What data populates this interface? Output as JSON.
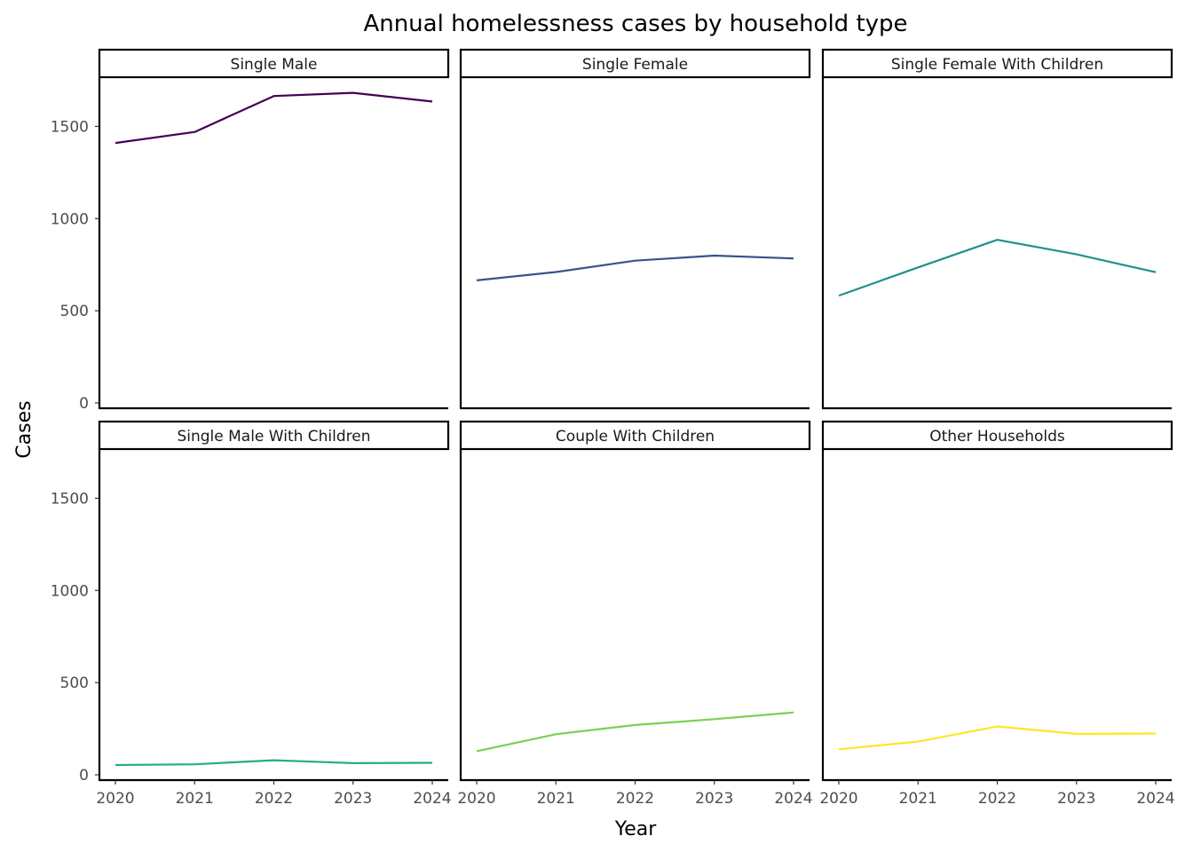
{
  "chart_data": {
    "type": "line",
    "layout": "facet-grid",
    "facet_rows": 2,
    "facet_cols": 3,
    "title": "Annual homelessness cases by household type",
    "xlabel": "Year",
    "ylabel": "Cases",
    "x": [
      2020,
      2021,
      2022,
      2023,
      2024
    ],
    "x_tick_labels": [
      "2020",
      "2021",
      "2022",
      "2023",
      "2024"
    ],
    "xlim": [
      2020,
      2024
    ],
    "ylim": [
      0,
      1750
    ],
    "y_ticks": [
      0,
      500,
      1000,
      1500
    ],
    "y_tick_labels": [
      "0",
      "500",
      "1000",
      "1500"
    ],
    "grid": false,
    "legend": "none",
    "series": [
      {
        "name": "Single Male",
        "color": "#440154",
        "values": [
          1410,
          1470,
          1665,
          1682,
          1635
        ]
      },
      {
        "name": "Single Female",
        "color": "#3b528b",
        "values": [
          665,
          710,
          772,
          799,
          784
        ]
      },
      {
        "name": "Single Female With Children",
        "color": "#21918c",
        "values": [
          582,
          735,
          885,
          806,
          709
        ]
      },
      {
        "name": "Single Male With Children",
        "color": "#27ad81",
        "values": [
          53,
          57,
          79,
          63,
          65
        ]
      },
      {
        "name": "Couple With Children",
        "color": "#7ad151",
        "values": [
          128,
          220,
          270,
          302,
          338
        ]
      },
      {
        "name": "Other Households",
        "color": "#fde725",
        "values": [
          138,
          180,
          262,
          222,
          224
        ]
      }
    ]
  }
}
